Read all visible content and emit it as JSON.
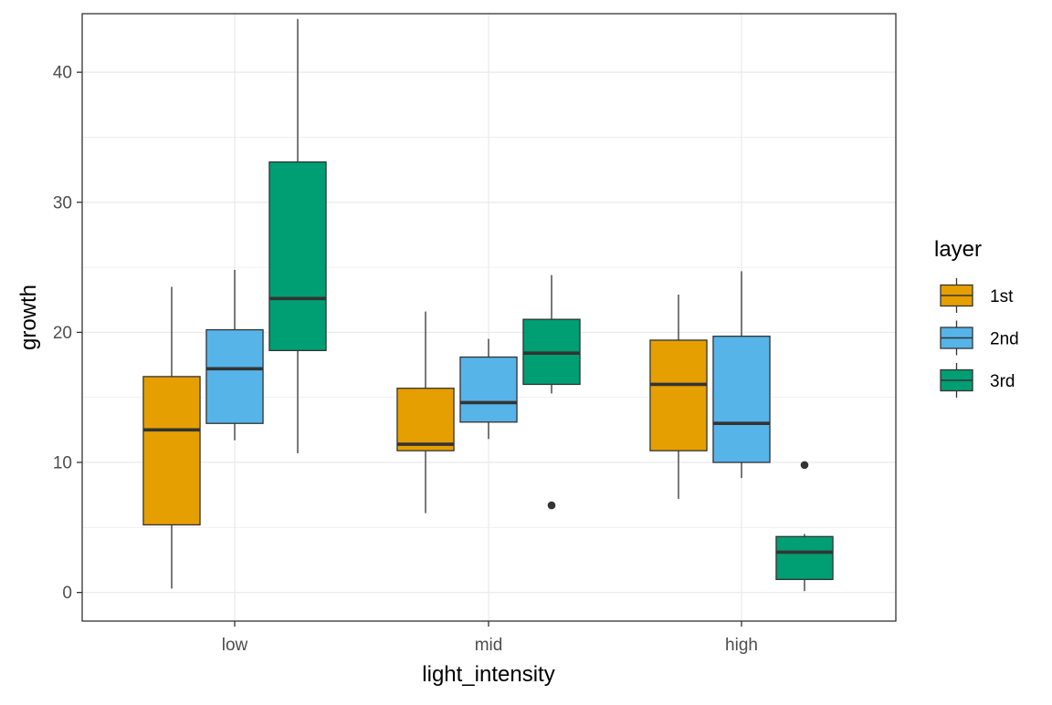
{
  "chart_data": {
    "type": "boxplot",
    "xlabel": "light_intensity",
    "ylabel": "growth",
    "categories": [
      "low",
      "mid",
      "high"
    ],
    "ylim": [
      -2.2,
      44.5
    ],
    "y_ticks": [
      0,
      10,
      20,
      30,
      40
    ],
    "y_tick_labels": [
      "0",
      "10",
      "20",
      "30",
      "40"
    ],
    "grid": true,
    "legend": {
      "title": "layer",
      "position": "right"
    },
    "series": [
      {
        "name": "1st",
        "color": "#E69F00",
        "boxes": [
          {
            "category": "low",
            "whisker_low": 0.3,
            "q1": 5.2,
            "median": 12.5,
            "q3": 16.6,
            "whisker_high": 23.5,
            "outliers": []
          },
          {
            "category": "mid",
            "whisker_low": 6.1,
            "q1": 10.9,
            "median": 11.4,
            "q3": 15.7,
            "whisker_high": 21.6,
            "outliers": []
          },
          {
            "category": "high",
            "whisker_low": 7.2,
            "q1": 10.9,
            "median": 16.0,
            "q3": 19.4,
            "whisker_high": 22.9,
            "outliers": []
          }
        ]
      },
      {
        "name": "2nd",
        "color": "#56B4E9",
        "boxes": [
          {
            "category": "low",
            "whisker_low": 11.7,
            "q1": 13.0,
            "median": 17.2,
            "q3": 20.2,
            "whisker_high": 24.8,
            "outliers": []
          },
          {
            "category": "mid",
            "whisker_low": 11.8,
            "q1": 13.1,
            "median": 14.6,
            "q3": 18.1,
            "whisker_high": 19.5,
            "outliers": []
          },
          {
            "category": "high",
            "whisker_low": 8.8,
            "q1": 10.0,
            "median": 13.0,
            "q3": 19.7,
            "whisker_high": 24.7,
            "outliers": []
          }
        ]
      },
      {
        "name": "3rd",
        "color": "#009E73",
        "boxes": [
          {
            "category": "low",
            "whisker_low": 10.7,
            "q1": 18.6,
            "median": 22.6,
            "q3": 33.1,
            "whisker_high": 44.1,
            "outliers": []
          },
          {
            "category": "mid",
            "whisker_low": 15.3,
            "q1": 16.0,
            "median": 18.4,
            "q3": 21.0,
            "whisker_high": 24.4,
            "outliers": [
              6.7
            ]
          },
          {
            "category": "high",
            "whisker_low": 0.1,
            "q1": 1.0,
            "median": 3.1,
            "q3": 4.3,
            "whisker_high": 4.5,
            "outliers": [
              9.8
            ]
          }
        ]
      }
    ]
  }
}
